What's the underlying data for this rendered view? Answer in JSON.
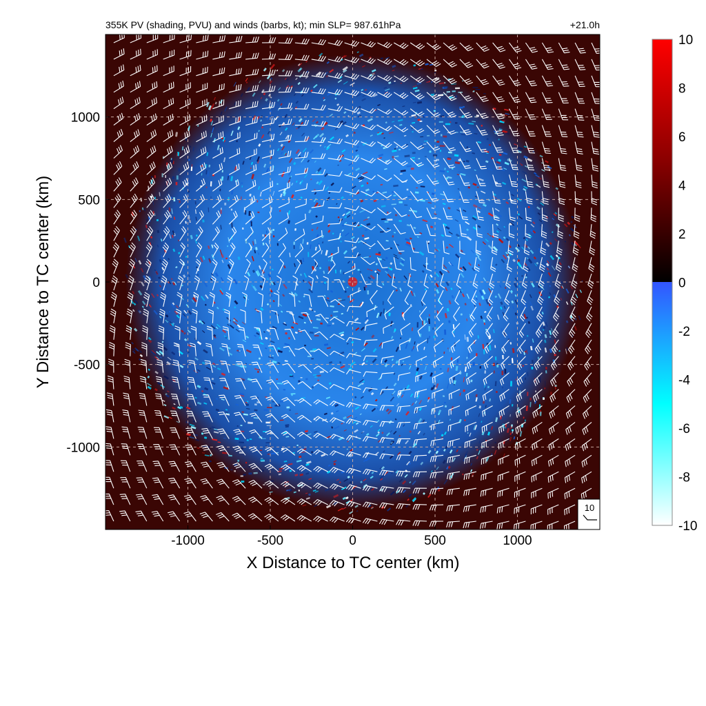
{
  "chart_data": {
    "type": "heatmap",
    "title": "355K PV (shading, PVU) and winds (barbs, kt); min SLP= 987.61hPa",
    "time_label": "+21.0h",
    "xlabel": "X Distance to TC center (km)",
    "ylabel": "Y Distance to TC center (km)",
    "xlim": [
      -1500,
      1500
    ],
    "ylim": [
      -1500,
      1500
    ],
    "x_ticks": [
      -1000,
      -500,
      0,
      500,
      1000
    ],
    "y_ticks": [
      -1000,
      -500,
      0,
      500,
      1000
    ],
    "x_tick_labels": [
      "-1000",
      "-500",
      "0",
      "500",
      "1000"
    ],
    "y_tick_labels": [
      "-1000",
      "-500",
      "0",
      "500",
      "1000"
    ],
    "grid": true,
    "colorbar": {
      "variable": "PV",
      "range": [
        -10,
        10
      ],
      "ticks": [
        10,
        8,
        6,
        4,
        2,
        0,
        -2,
        -4,
        -6,
        -8,
        -10
      ],
      "tick_labels": [
        "10",
        "8",
        "6",
        "4",
        "2",
        "0",
        "-2",
        "-4",
        "-6",
        "-8",
        "-10"
      ],
      "colors": {
        "max": "#ff0000",
        "mid_high": "#7a0000",
        "zero_pos": "#000000",
        "zero_neg": "#3355ff",
        "low_mid": "#00ffff",
        "min": "#ffffff"
      }
    },
    "min_slp_hPa": 987.61,
    "wind_reference_kt": 10,
    "wind_reference_label": "10",
    "field_description_colors": {
      "background_ring": "#3a0604",
      "core_negative": "#2a8cf0",
      "core_positive": "#b01818",
      "grid_line": "#c8a8a0",
      "barb": "#ffffff"
    }
  }
}
